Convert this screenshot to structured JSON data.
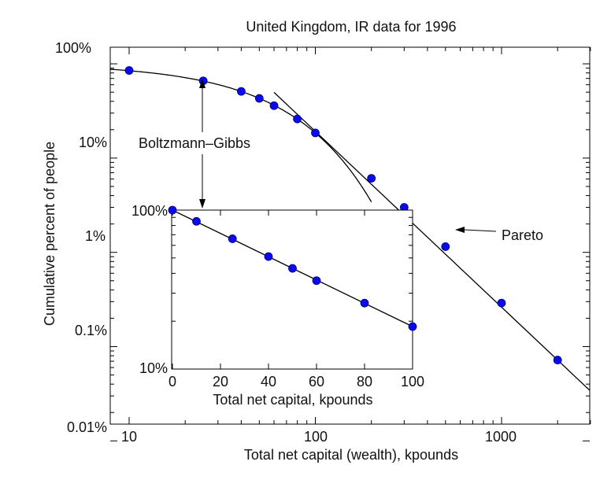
{
  "chart_data": [
    {
      "type": "scatter",
      "title": "United Kingdom, IR data for 1996",
      "xlabel": "Total net capital (wealth), kpounds",
      "ylabel": "Cumulative percent of people",
      "xscale": "log",
      "yscale": "log",
      "xlim": [
        7.8,
        3300
      ],
      "ylim": [
        0.01,
        150
      ],
      "xticks": [
        10,
        100,
        1000
      ],
      "xtick_labels": [
        "10",
        "100",
        "1000"
      ],
      "yticks": [
        0.01,
        0.1,
        1,
        10,
        100
      ],
      "ytick_labels": [
        "0.01%",
        "0.1%",
        "1%",
        "10%",
        "100%"
      ],
      "series": [
        {
          "name": "IR data",
          "x": [
            10,
            25,
            40,
            50,
            60,
            80,
            100,
            200,
            300,
            500,
            1000,
            2000
          ],
          "y": [
            85,
            66,
            51,
            43,
            36,
            26,
            18.5,
            6.1,
            3.0,
            1.15,
            0.29,
            0.072
          ]
        },
        {
          "name": "Boltzmann-Gibbs fit",
          "x_range": [
            7.8,
            200
          ]
        },
        {
          "name": "Pareto fit",
          "x_range": [
            60,
            3300
          ]
        }
      ],
      "annotations": [
        {
          "text": "Boltzmann–Gibbs",
          "points_to_x": 25
        },
        {
          "text": "Pareto",
          "points_to_x": 500
        }
      ]
    },
    {
      "type": "scatter",
      "title": "",
      "xlabel": "Total net capital, kpounds",
      "ylabel": "",
      "xscale": "linear",
      "yscale": "log",
      "xlim": [
        0,
        100
      ],
      "ylim": [
        10,
        100
      ],
      "xticks": [
        0,
        20,
        40,
        60,
        80,
        100
      ],
      "xtick_labels": [
        "0",
        "20",
        "40",
        "60",
        "80",
        "100"
      ],
      "yticks": [
        10,
        100
      ],
      "ytick_labels": [
        "10%",
        "100%"
      ],
      "series": [
        {
          "name": "IR data",
          "x": [
            0,
            10,
            25,
            40,
            50,
            60,
            80,
            100
          ],
          "y": [
            100,
            85,
            66,
            51,
            43,
            36,
            26,
            18.5
          ]
        }
      ]
    }
  ]
}
